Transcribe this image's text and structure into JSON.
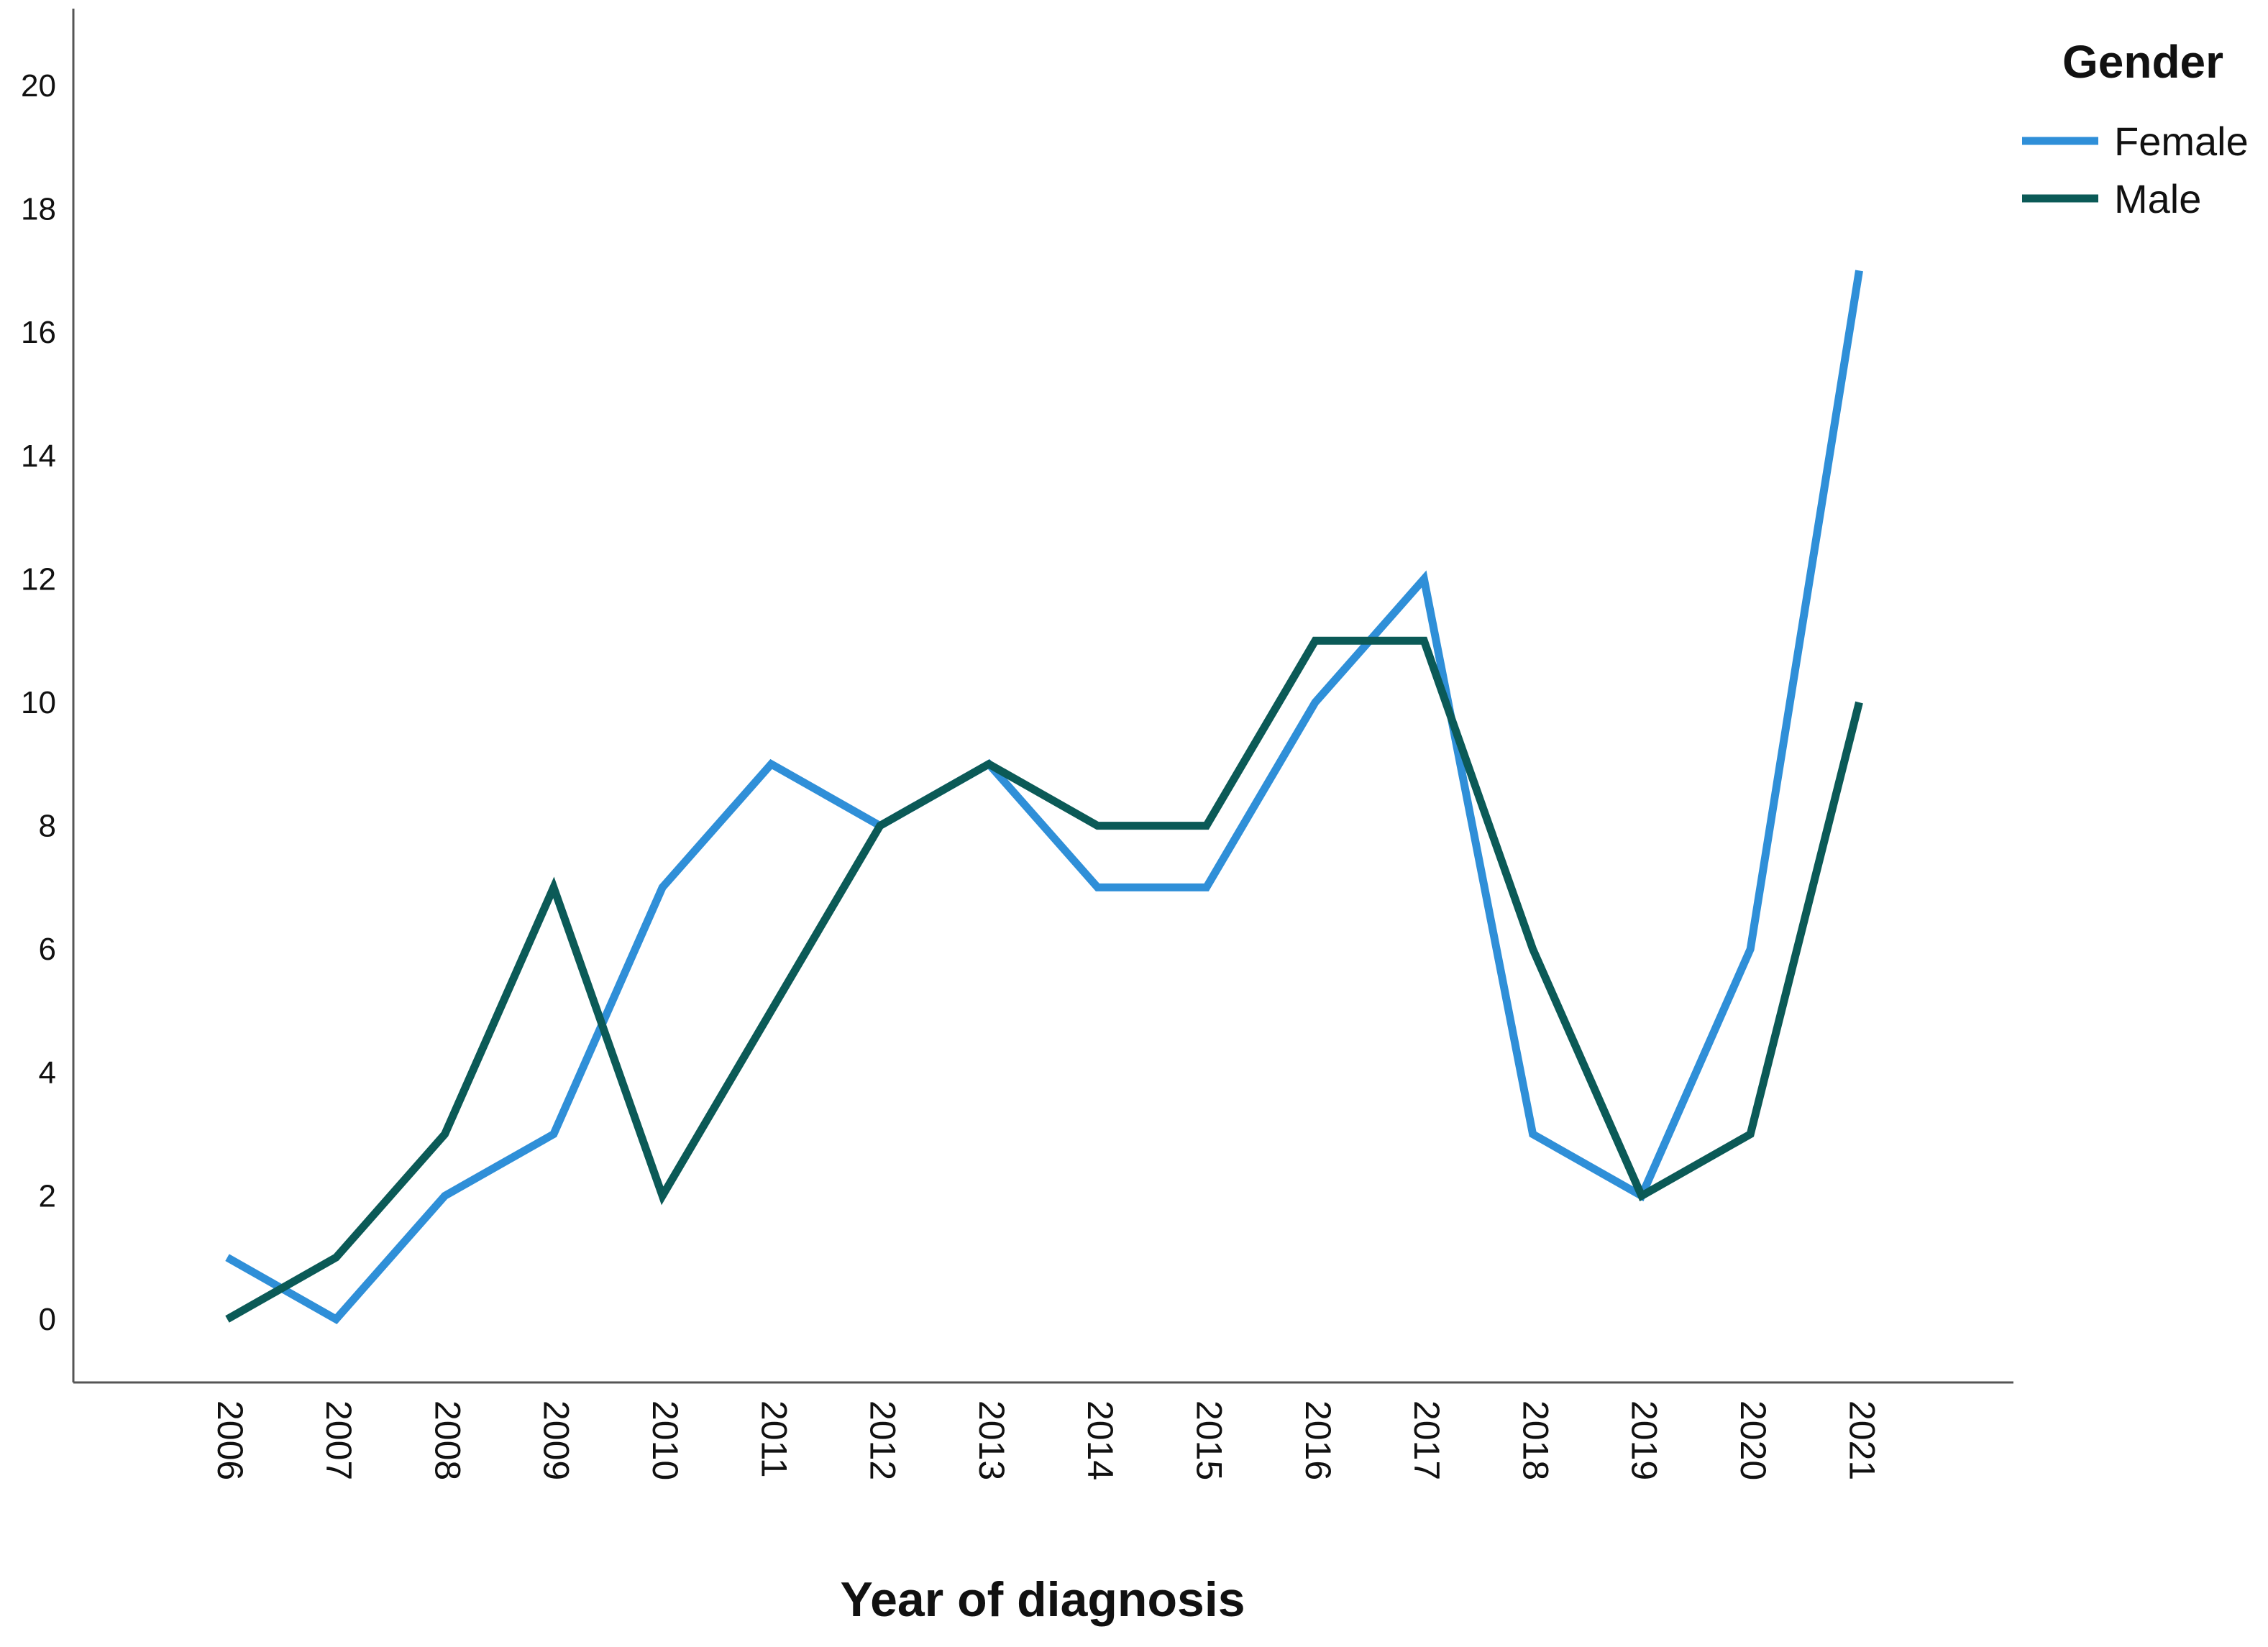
{
  "chart_data": {
    "type": "line",
    "title": "",
    "xlabel": "Year of diagnosis",
    "ylabel": "",
    "categories": [
      "2006",
      "2007",
      "2008",
      "2009",
      "2010",
      "2011",
      "2012",
      "2013",
      "2014",
      "2015",
      "2016",
      "2017",
      "2018",
      "2019",
      "2020",
      "2021"
    ],
    "yticks": [
      "0",
      "2",
      "4",
      "6",
      "8",
      "10",
      "12",
      "14",
      "16",
      "18",
      "20"
    ],
    "ylim": [
      -1,
      21
    ],
    "grid": false,
    "legend": {
      "title": "Gender",
      "placement": "top-right"
    },
    "series": [
      {
        "name": "Female",
        "color": "#2f8fd8",
        "values": [
          1,
          0,
          2,
          3,
          7,
          9,
          8,
          9,
          7,
          7,
          10,
          12,
          3,
          2,
          6,
          17
        ]
      },
      {
        "name": "Male",
        "color": "#0b5a57",
        "values": [
          0,
          1,
          3,
          7,
          2,
          5,
          8,
          9,
          8,
          8,
          11,
          11,
          6,
          2,
          3,
          10
        ]
      }
    ]
  }
}
